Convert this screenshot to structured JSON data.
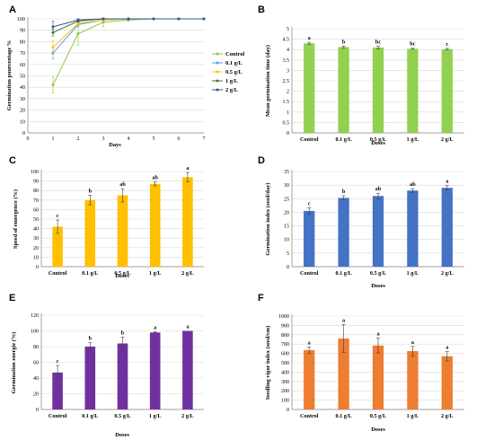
{
  "chart_data": [
    {
      "panel": "A",
      "type": "line",
      "xlabel": "Days",
      "ylabel": "Germination pourcentage %",
      "x": [
        1,
        2,
        3,
        4,
        5,
        6,
        7
      ],
      "xticks": [
        0,
        1,
        2,
        3,
        4,
        5,
        6,
        7
      ],
      "ylim": [
        0,
        100
      ],
      "yticks": [
        0,
        10,
        20,
        30,
        40,
        50,
        60,
        70,
        80,
        90,
        100
      ],
      "legend_position": "right",
      "series": [
        {
          "name": "Control",
          "color": "#8dc63f",
          "values": [
            42,
            87,
            97,
            99,
            100,
            100,
            100
          ],
          "errors": [
            7,
            10,
            4,
            1,
            0,
            0,
            0
          ]
        },
        {
          "name": "0.1 g/L",
          "color": "#4aa3df",
          "values": [
            70,
            95,
            99,
            100,
            100,
            100,
            100
          ],
          "errors": [
            5,
            2,
            1,
            0,
            0,
            0,
            0
          ]
        },
        {
          "name": "0.5 g/L",
          "color": "#ffc000",
          "values": [
            75,
            96,
            99,
            100,
            100,
            100,
            100
          ],
          "errors": [
            6,
            2,
            1,
            0,
            0,
            0,
            0
          ]
        },
        {
          "name": "1 g/L",
          "color": "#3a7d22",
          "values": [
            88,
            98,
            100,
            100,
            100,
            100,
            100
          ],
          "errors": [
            3,
            1,
            0,
            0,
            0,
            0,
            0
          ]
        },
        {
          "name": "2 g/L",
          "color": "#2f5597",
          "values": [
            93,
            99,
            100,
            100,
            100,
            100,
            100
          ],
          "errors": [
            5,
            1,
            0,
            0,
            0,
            0,
            0
          ]
        }
      ]
    },
    {
      "panel": "B",
      "type": "bar",
      "xlabel": "Doses",
      "ylabel": "Mean germination time (day)",
      "categories": [
        "Control",
        "0.1 g/L",
        "0.5 g/L",
        "1 g/L",
        "2 g/L"
      ],
      "values": [
        4.3,
        4.12,
        4.1,
        4.04,
        4.02
      ],
      "errors": [
        0.05,
        0.04,
        0.06,
        0.03,
        0.04
      ],
      "letters": [
        "a",
        "b",
        "bc",
        "bc",
        "c"
      ],
      "color": "#92d050",
      "ylim": [
        0,
        5
      ],
      "yticks": [
        0,
        0.5,
        1,
        1.5,
        2,
        2.5,
        3,
        3.5,
        4,
        4.5,
        5
      ]
    },
    {
      "panel": "C",
      "type": "bar",
      "xlabel": "Doses",
      "ylabel": "Speed of emergence (%)",
      "categories": [
        "Control",
        "0.1 g/L",
        "0.5 g/L",
        "1 g/L",
        "2 g/L"
      ],
      "values": [
        42,
        70,
        75,
        87,
        94
      ],
      "errors": [
        7,
        5,
        7,
        2,
        5
      ],
      "letters": [
        "c",
        "b",
        "ab",
        "ab",
        "a"
      ],
      "color": "#ffc000",
      "ylim": [
        0,
        100
      ],
      "yticks": [
        0,
        10,
        20,
        30,
        40,
        50,
        60,
        70,
        80,
        90,
        100
      ]
    },
    {
      "panel": "D",
      "type": "bar",
      "xlabel": "Doses",
      "ylabel": "Germination index (seed/day)",
      "categories": [
        "Control",
        "0.1 g/L",
        "0.5 g/L",
        "1 g/L",
        "2 g/L"
      ],
      "values": [
        20.5,
        25.3,
        26.0,
        28.0,
        29.0
      ],
      "errors": [
        1.2,
        0.8,
        1.0,
        0.7,
        0.8
      ],
      "letters": [
        "c",
        "b",
        "ab",
        "ab",
        "a"
      ],
      "color": "#4472c4",
      "ylim": [
        0,
        35
      ],
      "yticks": [
        0,
        5,
        10,
        15,
        20,
        25,
        30,
        35
      ]
    },
    {
      "panel": "E",
      "type": "bar",
      "xlabel": "Doses",
      "ylabel": "Germination energie (%)",
      "categories": [
        "Control",
        "0.1 g/L",
        "0.5 g/L",
        "1 g/L",
        "2 g/L"
      ],
      "values": [
        47,
        80,
        84,
        98,
        100
      ],
      "errors": [
        9,
        5,
        8,
        1,
        0
      ],
      "letters": [
        "c",
        "b",
        "b",
        "a",
        "a"
      ],
      "color": "#7030a0",
      "ylim": [
        0,
        120
      ],
      "yticks": [
        0,
        20,
        40,
        60,
        80,
        100,
        120
      ]
    },
    {
      "panel": "F",
      "type": "bar",
      "xlabel": "Doses",
      "ylabel": "Seedling vigor index (seed/cm)",
      "categories": [
        "Control",
        "0.1 g/L",
        "0.5 g/L",
        "1 g/L",
        "2 g/L"
      ],
      "values": [
        635,
        760,
        685,
        625,
        570
      ],
      "errors": [
        35,
        150,
        80,
        50,
        50
      ],
      "letters": [
        "a",
        "a",
        "a",
        "a",
        "a"
      ],
      "color": "#ed7d31",
      "ylim": [
        0,
        1000
      ],
      "yticks": [
        0,
        100,
        200,
        300,
        400,
        500,
        600,
        700,
        800,
        900,
        1000
      ]
    }
  ]
}
